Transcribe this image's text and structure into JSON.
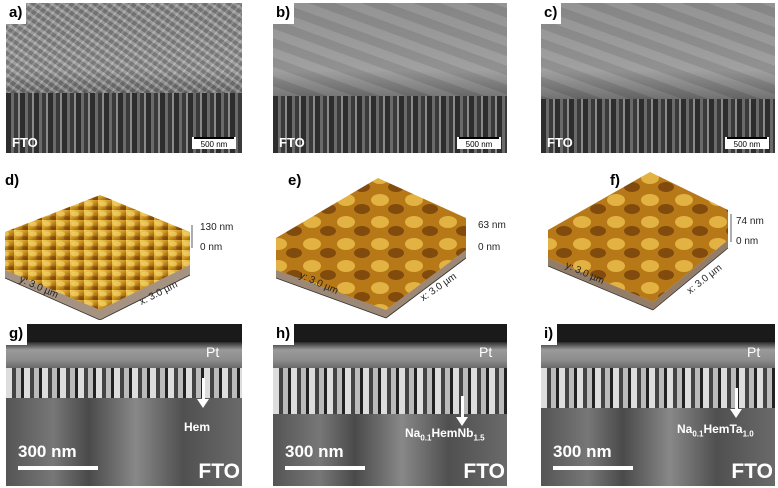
{
  "sem_panels": [
    {
      "label": "a)",
      "substrate": "FTO",
      "scale": "500 nm"
    },
    {
      "label": "b)",
      "substrate": "FTO",
      "scale": "500 nm"
    },
    {
      "label": "c)",
      "substrate": "FTO",
      "scale": "500 nm"
    }
  ],
  "afm_panels": [
    {
      "label": "d)",
      "z_max": "130 nm",
      "z_min": "0 nm",
      "x_axis": "x: 3.0 µm",
      "y_axis": "y: 3.0 µm"
    },
    {
      "label": "e)",
      "z_max": "63 nm",
      "z_min": "0 nm",
      "x_axis": "x: 3.0 µm",
      "y_axis": "y: 3.0 µm"
    },
    {
      "label": "f)",
      "z_max": "74 nm",
      "z_min": "0 nm",
      "x_axis": "x: 3.0 µm",
      "y_axis": "y: 3.0 µm"
    }
  ],
  "tem_panels": [
    {
      "label": "g)",
      "top_layer": "Pt",
      "scale": "300 nm",
      "substrate": "FTO",
      "phase_main": "Hem",
      "phase_sub1": "",
      "phase_mid": "",
      "phase_sub2": ""
    },
    {
      "label": "h)",
      "top_layer": "Pt",
      "scale": "300 nm",
      "substrate": "FTO",
      "phase_main": "Na",
      "phase_sub1": "0.1",
      "phase_mid": "HemNb",
      "phase_sub2": "1.5"
    },
    {
      "label": "i)",
      "top_layer": "Pt",
      "scale": "300 nm",
      "substrate": "FTO",
      "phase_main": "Na",
      "phase_sub1": "0.1",
      "phase_mid": "HemTa",
      "phase_sub2": "1.0"
    }
  ],
  "colors": {
    "afm_light": "#f2c94c",
    "afm_mid": "#c98a16",
    "afm_dark": "#5a2e05"
  }
}
